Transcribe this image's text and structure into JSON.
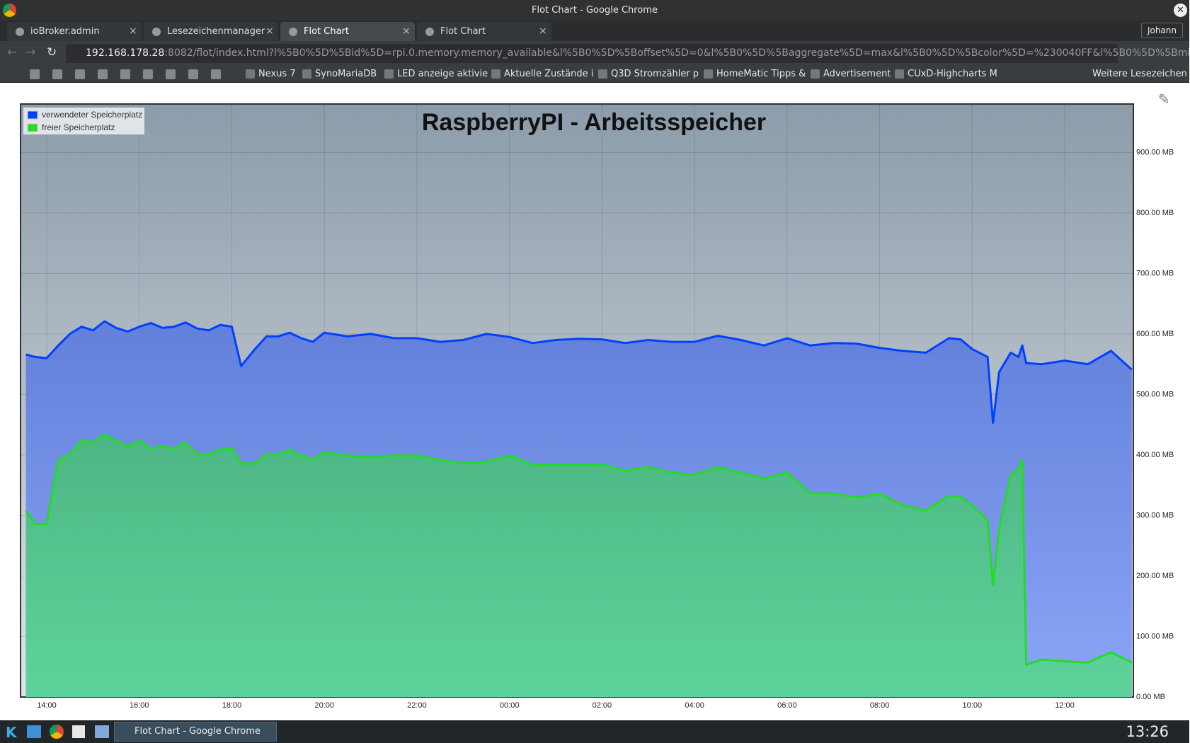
{
  "window": {
    "title": "Flot Chart - Google Chrome",
    "user": "Johann"
  },
  "tabs": [
    "ioBroker.admin",
    "Lesezeichenmanager",
    "Flot Chart",
    "Flot Chart"
  ],
  "address": {
    "host": "192.168.178.28",
    "rest": ":8082/flot/index.html?l%5B0%5D%5Bid%5D=rpi.0.memory.memory_available&l%5B0%5D%5Boffset%5D=0&l%5B0%5D%5Baggregate%5D=max&l%5B0%5D%5Bcolor%5D=%230040FF&l%5B0%5D%5Bmi"
  },
  "bookmarks": [
    "Nexus 7",
    "SynoMariaDB",
    "LED anzeige aktivie",
    "Aktuelle Zustände i",
    "Q3D Stromzähler p",
    "HomeMatic Tipps &",
    "Advertisement",
    "CUxD-Highcharts M"
  ],
  "bookmarks_more": "Weitere Lesezeichen",
  "taskbar": {
    "window": "Flot Chart - Google Chrome",
    "clock": "13:26"
  },
  "chart_data": {
    "type": "area",
    "title": "RaspberryPI - Arbeitsspeicher",
    "x": [
      "13:33",
      "13:45",
      "14:00",
      "14:15",
      "14:30",
      "14:45",
      "15:00",
      "15:15",
      "15:30",
      "15:45",
      "16:00",
      "16:15",
      "16:30",
      "16:45",
      "17:00",
      "17:15",
      "17:30",
      "17:45",
      "18:00",
      "18:12",
      "18:30",
      "18:45",
      "19:00",
      "19:15",
      "19:30",
      "19:45",
      "20:00",
      "20:30",
      "21:00",
      "21:30",
      "22:00",
      "22:30",
      "23:00",
      "23:30",
      "00:00",
      "00:30",
      "01:00",
      "01:30",
      "02:00",
      "02:30",
      "03:00",
      "03:30",
      "04:00",
      "04:30",
      "05:00",
      "05:30",
      "06:00",
      "06:30",
      "07:00",
      "07:30",
      "08:00",
      "08:30",
      "09:00",
      "09:30",
      "09:45",
      "10:00",
      "10:20",
      "10:27",
      "10:35",
      "10:50",
      "11:00",
      "11:05",
      "11:10",
      "11:30",
      "12:00",
      "12:30",
      "13:00",
      "13:27"
    ],
    "series": [
      {
        "name": "verwendeter Speicherplatz",
        "color": "#0040ff",
        "values": [
          566,
          562,
          560,
          581,
          600,
          612,
          606,
          621,
          610,
          604,
          612,
          618,
          610,
          612,
          619,
          609,
          606,
          615,
          612,
          547,
          575,
          596,
          596,
          602,
          593,
          587,
          602,
          596,
          600,
          593,
          593,
          587,
          590,
          600,
          595,
          585,
          590,
          592,
          591,
          585,
          590,
          587,
          587,
          597,
          590,
          581,
          593,
          581,
          585,
          584,
          577,
          572,
          569,
          593,
          591,
          575,
          562,
          453,
          537,
          569,
          562,
          581,
          552,
          550,
          556,
          550,
          572,
          541
        ]
      },
      {
        "name": "freier Speicherplatz",
        "color": "#22dd22",
        "values": [
          308,
          286,
          286,
          392,
          401,
          424,
          421,
          434,
          424,
          414,
          424,
          411,
          414,
          411,
          421,
          401,
          401,
          409,
          411,
          386,
          386,
          401,
          401,
          409,
          399,
          392,
          405,
          399,
          396,
          399,
          399,
          392,
          386,
          389,
          399,
          384,
          384,
          384,
          384,
          374,
          380,
          371,
          367,
          380,
          371,
          361,
          371,
          336,
          336,
          330,
          336,
          317,
          308,
          333,
          330,
          317,
          292,
          185,
          277,
          367,
          376,
          392,
          53,
          62,
          59,
          57,
          74,
          57
        ]
      }
    ],
    "xlim": [
      "13:26",
      "13:29"
    ],
    "xticks": [
      "14:00",
      "16:00",
      "18:00",
      "20:00",
      "22:00",
      "00:00",
      "02:00",
      "04:00",
      "06:00",
      "08:00",
      "10:00",
      "12:00"
    ],
    "ylim": [
      0,
      980
    ],
    "yticks": [
      {
        "value": 0,
        "label": "0.00 MB"
      },
      {
        "value": 100,
        "label": "100.00 MB"
      },
      {
        "value": 200,
        "label": "200.00 MB"
      },
      {
        "value": 300,
        "label": "300.00 MB"
      },
      {
        "value": 400,
        "label": "400.00 MB"
      },
      {
        "value": 500,
        "label": "500.00 MB"
      },
      {
        "value": 600,
        "label": "600.00 MB"
      },
      {
        "value": 700,
        "label": "700.00 MB"
      },
      {
        "value": 800,
        "label": "800.00 MB"
      },
      {
        "value": 900,
        "label": "900.00 MB"
      }
    ],
    "grid": true,
    "legend": "top-left"
  }
}
